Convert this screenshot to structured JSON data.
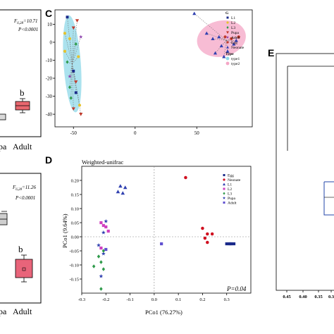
{
  "panels": {
    "c_letter": "C",
    "d_letter": "D",
    "e_letter": "E"
  },
  "left_top": {
    "stat_f": "F",
    "stat_f_sub": "6,28",
    "stat_f_val": "=10.71",
    "stat_p": "P<0.0001",
    "letter_b": "b",
    "xlabels": [
      "pa",
      "Adult"
    ]
  },
  "left_bottom": {
    "stat_f": "F",
    "stat_f_sub": "6,28",
    "stat_f_val": "=11.26",
    "stat_p": "P<0.0001",
    "letter_b": "b",
    "xlabels": [
      "pa",
      "Adult"
    ]
  },
  "panel_e": {
    "ticks": [
      "0.45",
      "0.40",
      "0.35",
      "0.3"
    ]
  },
  "chart_data": [
    {
      "type": "scatter",
      "panel": "C",
      "title": "",
      "xticks": [
        -50,
        0,
        50
      ],
      "yticks": [
        10,
        0,
        -10,
        -20,
        -30,
        -40
      ],
      "xlim": [
        -65,
        95
      ],
      "ylim": [
        -47,
        18
      ],
      "legend_title": "G",
      "legend": [
        {
          "name": "L1",
          "color": "#1a2a8a",
          "marker": "square"
        },
        {
          "name": "L2",
          "color": "#e6c22e",
          "marker": "circle"
        },
        {
          "name": "L3",
          "color": "#2e9a4a",
          "marker": "diamond"
        },
        {
          "name": "Pupa",
          "color": "#c0392b",
          "marker": "triangle-down"
        },
        {
          "name": "Adult",
          "color": "#8e44ad",
          "marker": "star"
        },
        {
          "name": "Egg",
          "color": "#c0392b",
          "marker": "circle"
        },
        {
          "name": "Neonate",
          "color": "#3040b0",
          "marker": "triangle"
        }
      ],
      "type_title": "Type",
      "type_legend": [
        {
          "name": "type1",
          "color": "#8fd8e8"
        },
        {
          "name": "type2",
          "color": "#f4a6c6"
        }
      ],
      "clusters": [
        {
          "name": "type1",
          "ellipse": {
            "cx": -51,
            "cy": -12,
            "rx": 7,
            "ry": 27,
            "color": "#8fd8e8"
          },
          "centroid": [
            -51,
            -12
          ],
          "points": [
            {
              "x": -55,
              "y": 14,
              "color": "#1a2a8a",
              "marker": "square"
            },
            {
              "x": -47,
              "y": 12,
              "color": "#c0392b",
              "marker": "triangle-down"
            },
            {
              "x": -50,
              "y": 8,
              "color": "#c0392b",
              "marker": "triangle-down"
            },
            {
              "x": -57,
              "y": 5,
              "color": "#e6c22e",
              "marker": "circle"
            },
            {
              "x": -44,
              "y": 3,
              "color": "#8e44ad",
              "marker": "star"
            },
            {
              "x": -53,
              "y": 2,
              "color": "#e6c22e",
              "marker": "circle"
            },
            {
              "x": -48,
              "y": -1,
              "color": "#2e9a4a",
              "marker": "diamond"
            },
            {
              "x": -57,
              "y": -5,
              "color": "#e6c22e",
              "marker": "circle"
            },
            {
              "x": -46,
              "y": -8,
              "color": "#e6c22e",
              "marker": "circle"
            },
            {
              "x": -55,
              "y": -11,
              "color": "#2e9a4a",
              "marker": "diamond"
            },
            {
              "x": -50,
              "y": -16,
              "color": "#1a2a8a",
              "marker": "square"
            },
            {
              "x": -53,
              "y": -19,
              "color": "#8e44ad",
              "marker": "star"
            },
            {
              "x": -48,
              "y": -22,
              "color": "#c0392b",
              "marker": "triangle-down"
            },
            {
              "x": -53,
              "y": -25,
              "color": "#2e9a4a",
              "marker": "diamond"
            },
            {
              "x": -48,
              "y": -28,
              "color": "#1a2a8a",
              "marker": "square"
            },
            {
              "x": -52,
              "y": -31,
              "color": "#2e9a4a",
              "marker": "diamond"
            },
            {
              "x": -45,
              "y": -35,
              "color": "#e6c22e",
              "marker": "circle"
            },
            {
              "x": -50,
              "y": -37,
              "color": "#c0392b",
              "marker": "triangle-down"
            },
            {
              "x": -44,
              "y": -40,
              "color": "#c0392b",
              "marker": "triangle-down"
            }
          ]
        },
        {
          "name": "type2",
          "ellipse": {
            "cx": 70,
            "cy": 2,
            "rx": 20,
            "ry": 10,
            "color": "#f4a6c6"
          },
          "centroid": [
            74,
            1
          ],
          "points": [
            {
              "x": 48,
              "y": 16,
              "color": "#3040b0",
              "marker": "triangle"
            },
            {
              "x": 58,
              "y": 5,
              "color": "#3040b0",
              "marker": "triangle"
            },
            {
              "x": 63,
              "y": 2,
              "color": "#3040b0",
              "marker": "triangle"
            },
            {
              "x": 68,
              "y": 3,
              "color": "#3040b0",
              "marker": "triangle"
            },
            {
              "x": 73,
              "y": 3,
              "color": "#c0392b",
              "marker": "circle"
            },
            {
              "x": 78,
              "y": 2,
              "color": "#c0392b",
              "marker": "circle"
            },
            {
              "x": 82,
              "y": 1,
              "color": "#3040b0",
              "marker": "triangle"
            },
            {
              "x": 84,
              "y": 3,
              "color": "#c0392b",
              "marker": "circle"
            },
            {
              "x": 80,
              "y": -1,
              "color": "#3040b0",
              "marker": "triangle"
            },
            {
              "x": 70,
              "y": -2,
              "color": "#3040b0",
              "marker": "triangle"
            },
            {
              "x": 75,
              "y": -5,
              "color": "#3040b0",
              "marker": "triangle"
            },
            {
              "x": 65,
              "y": -6,
              "color": "#3040b0",
              "marker": "triangle"
            },
            {
              "x": 72,
              "y": -8,
              "color": "#3040b0",
              "marker": "triangle"
            }
          ]
        }
      ]
    },
    {
      "type": "scatter",
      "panel": "D",
      "subtitle": "Weighted-unifrac",
      "xlabel": "PCo1 (76.27%)",
      "ylabel": "PCo1 (9.64%)",
      "annotation": "P=0.04",
      "xlim": [
        -0.3,
        0.4
      ],
      "ylim": [
        -0.2,
        0.25
      ],
      "xticks": [
        -0.3,
        -0.2,
        -0.1,
        0.0,
        0.1,
        0.2,
        0.3
      ],
      "xtick_labels": [
        "-0.3",
        "-0.2",
        "-0.1",
        "0.0",
        "0.1",
        "0.2",
        "0.3"
      ],
      "yticks": [
        0.2,
        0.15,
        0.1,
        0.05,
        0.0,
        -0.05,
        -0.1,
        -0.15
      ],
      "ytick_labels": [
        "0.20",
        "0.15",
        "0.10",
        "0.05",
        "0.00",
        "-0.05",
        "-0.10",
        "-0.15"
      ],
      "legend": [
        {
          "name": "Egg",
          "color": "#1a2a8a",
          "marker": "square"
        },
        {
          "name": "Neonate",
          "color": "#d01020",
          "marker": "circle"
        },
        {
          "name": "L1",
          "color": "#3040b0",
          "marker": "triangle"
        },
        {
          "name": "L2",
          "color": "#d040c0",
          "marker": "square"
        },
        {
          "name": "L3",
          "color": "#2e9a4a",
          "marker": "diamond"
        },
        {
          "name": "Pupa",
          "color": "#3040b0",
          "marker": "star"
        },
        {
          "name": "Adult",
          "color": "#6050d0",
          "marker": "square"
        }
      ],
      "series": [
        {
          "name": "Neonate",
          "color": "#d01020",
          "marker": "circle",
          "points": [
            [
              0.13,
              0.21
            ],
            [
              0.2,
              0.03
            ],
            [
              0.22,
              0.01
            ],
            [
              0.24,
              0.01
            ],
            [
              0.21,
              -0.005
            ],
            [
              0.22,
              -0.02
            ]
          ]
        },
        {
          "name": "Egg",
          "color": "#1a2a8a",
          "marker": "square",
          "points": [
            [
              0.3,
              -0.025
            ],
            [
              0.31,
              -0.025
            ],
            [
              0.32,
              -0.025
            ],
            [
              0.33,
              -0.025
            ],
            [
              0.315,
              -0.025
            ]
          ]
        },
        {
          "name": "L1",
          "color": "#3040b0",
          "marker": "triangle",
          "points": [
            [
              -0.14,
              0.18
            ],
            [
              -0.12,
              0.175
            ],
            [
              -0.15,
              0.16
            ],
            [
              -0.13,
              0.155
            ]
          ]
        },
        {
          "name": "L2",
          "color": "#d040c0",
          "marker": "square",
          "points": [
            [
              -0.22,
              0.05
            ],
            [
              -0.21,
              0.04
            ],
            [
              -0.2,
              0.035
            ],
            [
              -0.19,
              0.02
            ],
            [
              -0.22,
              -0.04
            ]
          ]
        },
        {
          "name": "Pupa",
          "color": "#3040b0",
          "marker": "star",
          "points": [
            [
              -0.2,
              0.055
            ],
            [
              -0.21,
              0.015
            ],
            [
              -0.23,
              -0.03
            ],
            [
              -0.21,
              -0.06
            ],
            [
              -0.22,
              -0.14
            ]
          ]
        },
        {
          "name": "L3",
          "color": "#2e9a4a",
          "marker": "diamond",
          "points": [
            [
              -0.21,
              -0.05
            ],
            [
              -0.23,
              -0.07
            ],
            [
              -0.25,
              -0.105
            ],
            [
              -0.22,
              -0.09
            ],
            [
              -0.21,
              -0.115
            ],
            [
              -0.22,
              -0.185
            ]
          ]
        },
        {
          "name": "Adult",
          "color": "#6050d0",
          "marker": "square",
          "points": [
            [
              -0.2,
              -0.045
            ],
            [
              0.03,
              -0.025
            ]
          ]
        }
      ]
    }
  ]
}
